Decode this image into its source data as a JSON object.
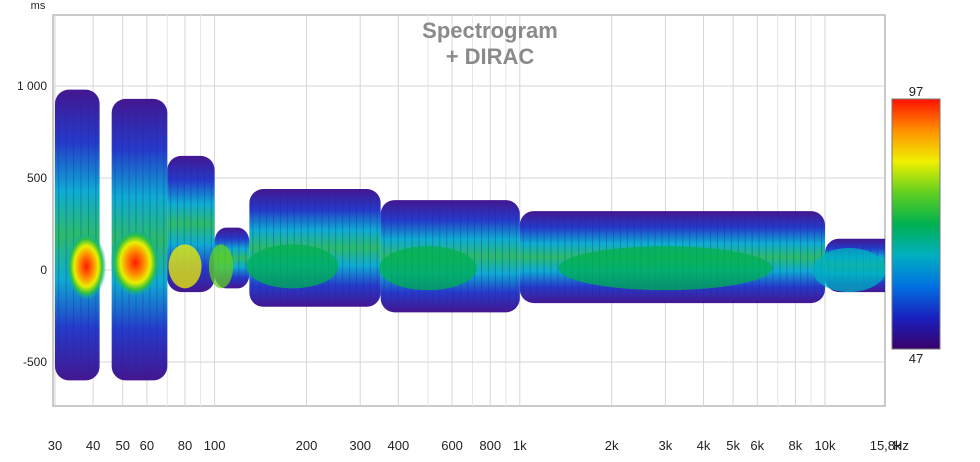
{
  "chart_data": {
    "type": "heatmap",
    "title": "Spectrogram",
    "subtitle": "+ DIRAC",
    "xlabel": "Hz",
    "ylabel": "ms",
    "x_scale": "log",
    "xlim": [
      30,
      22000
    ],
    "ylim": [
      -850,
      1380
    ],
    "x_ticks": [
      {
        "value": 30,
        "label": "30"
      },
      {
        "value": 40,
        "label": "40"
      },
      {
        "value": 50,
        "label": "50"
      },
      {
        "value": 60,
        "label": "60"
      },
      {
        "value": 80,
        "label": "80"
      },
      {
        "value": 100,
        "label": "100"
      },
      {
        "value": 200,
        "label": "200"
      },
      {
        "value": 300,
        "label": "300"
      },
      {
        "value": 400,
        "label": "400"
      },
      {
        "value": 600,
        "label": "600"
      },
      {
        "value": 800,
        "label": "800"
      },
      {
        "value": 1000,
        "label": "1k"
      },
      {
        "value": 2000,
        "label": "2k"
      },
      {
        "value": 3000,
        "label": "3k"
      },
      {
        "value": 4000,
        "label": "4k"
      },
      {
        "value": 5000,
        "label": "5k"
      },
      {
        "value": 6000,
        "label": "6k"
      },
      {
        "value": 8000,
        "label": "8k"
      },
      {
        "value": 10000,
        "label": "10k"
      },
      {
        "value": 15800,
        "label": "15,8k"
      }
    ],
    "y_ticks": [
      {
        "value": 1000,
        "label": "1 000"
      },
      {
        "value": 500,
        "label": "500"
      },
      {
        "value": 0,
        "label": "0"
      },
      {
        "value": -500,
        "label": "-500"
      }
    ],
    "grid": true,
    "colorbar": {
      "min": 47,
      "max": 97,
      "min_label": "47",
      "max_label": "97",
      "colors": [
        "#3a006a",
        "#1a20c0",
        "#0070e0",
        "#00b0c0",
        "#00b050",
        "#60d020",
        "#f0f000",
        "#ff9000",
        "#ff1000"
      ]
    },
    "regions": [
      {
        "freq_range": [
          30,
          42
        ],
        "time_range": [
          -600,
          980
        ],
        "peak_freq": 38,
        "peak_time": 20,
        "peak_level": 96
      },
      {
        "freq_range": [
          46,
          70
        ],
        "time_range": [
          -600,
          930
        ],
        "peak_freq": 55,
        "peak_time": 40,
        "peak_level": 95
      },
      {
        "freq_range": [
          70,
          100
        ],
        "time_range": [
          -120,
          620
        ],
        "peak_freq": 80,
        "peak_time": 20,
        "peak_level": 82
      },
      {
        "freq_range": [
          100,
          130
        ],
        "time_range": [
          -100,
          230
        ],
        "peak_freq": 105,
        "peak_time": 20,
        "peak_level": 80
      },
      {
        "freq_range": [
          130,
          350
        ],
        "time_range": [
          -200,
          440
        ],
        "peak_freq": 180,
        "peak_time": 20,
        "peak_level": 75
      },
      {
        "freq_range": [
          350,
          1000
        ],
        "time_range": [
          -230,
          380
        ],
        "peak_freq": 500,
        "peak_time": 10,
        "peak_level": 72
      },
      {
        "freq_range": [
          1000,
          10000
        ],
        "time_range": [
          -180,
          320
        ],
        "peak_freq": 3000,
        "peak_time": 10,
        "peak_level": 70
      },
      {
        "freq_range": [
          10000,
          22000
        ],
        "time_range": [
          -120,
          170
        ],
        "peak_freq": 12000,
        "peak_time": 0,
        "peak_level": 66
      }
    ]
  }
}
